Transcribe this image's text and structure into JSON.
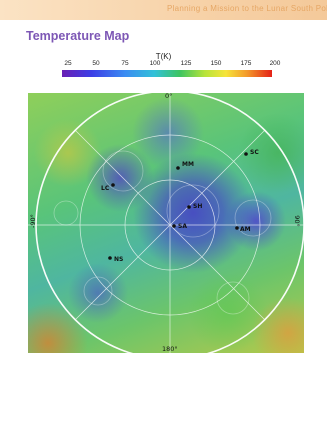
{
  "header": {
    "title": "Planning a Mission to the Lunar South Pole"
  },
  "page": {
    "title": "Temperature Map"
  },
  "colorbar": {
    "title": "T(K)",
    "ticks": [
      "25",
      "50",
      "75",
      "100",
      "125",
      "150",
      "175",
      "200"
    ],
    "range": [
      25,
      200
    ],
    "colors": [
      "#6a1fb4",
      "#3c3ee6",
      "#3b8cf2",
      "#32c1d8",
      "#3dc462",
      "#b7e43a",
      "#f6e43a",
      "#f39a2a",
      "#e42118"
    ]
  },
  "map": {
    "labels": {
      "top": "0°",
      "bottom": "180°",
      "left": "-90°",
      "right": "90°"
    },
    "sites": [
      {
        "id": "mm",
        "label": "MM"
      },
      {
        "id": "lc",
        "label": "LC"
      },
      {
        "id": "sc",
        "label": "SC"
      },
      {
        "id": "sh",
        "label": "SH"
      },
      {
        "id": "sa",
        "label": "SA"
      },
      {
        "id": "am",
        "label": "AM"
      },
      {
        "id": "ns",
        "label": "NS"
      }
    ],
    "ring_color": "#ffffff",
    "grid_color": "#ffffff"
  }
}
